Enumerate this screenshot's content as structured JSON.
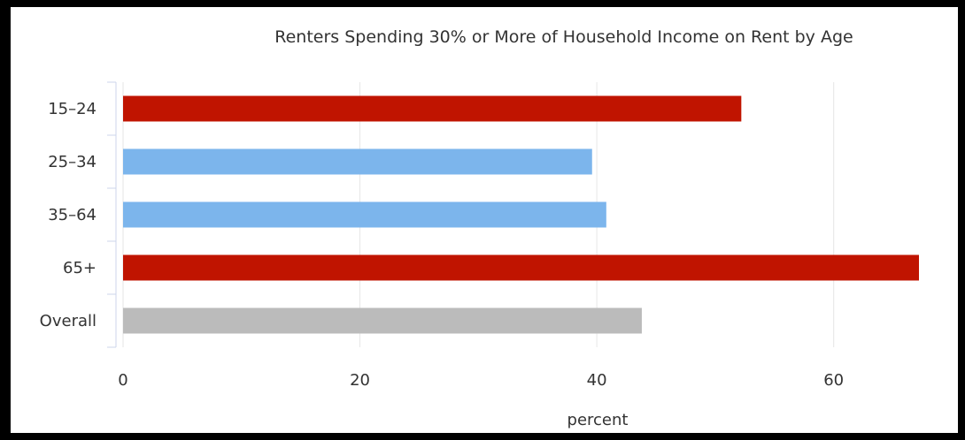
{
  "chart_data": {
    "type": "bar",
    "orientation": "horizontal",
    "title": "Renters Spending 30% or More of Household Income on Rent by Age",
    "xlabel": "percent",
    "ylabel": "",
    "categories": [
      "15–24",
      "25–34",
      "35–64",
      "65+",
      "Overall"
    ],
    "values": [
      52.2,
      39.6,
      40.8,
      67.2,
      43.8
    ],
    "bar_colors": [
      "#c01400",
      "#7cb5ec",
      "#7cb5ec",
      "#c01400",
      "#bbbbbb"
    ],
    "xlim": [
      0,
      67.2
    ],
    "xticks": [
      0,
      20,
      40,
      60
    ],
    "grid": "vertical",
    "legend": "none"
  },
  "colors": {
    "page_background": "#000000",
    "plot_background": "#ffffff",
    "gridline": "#e6e6e6",
    "axis_line": "#ccd6eb",
    "text": "#333333"
  }
}
